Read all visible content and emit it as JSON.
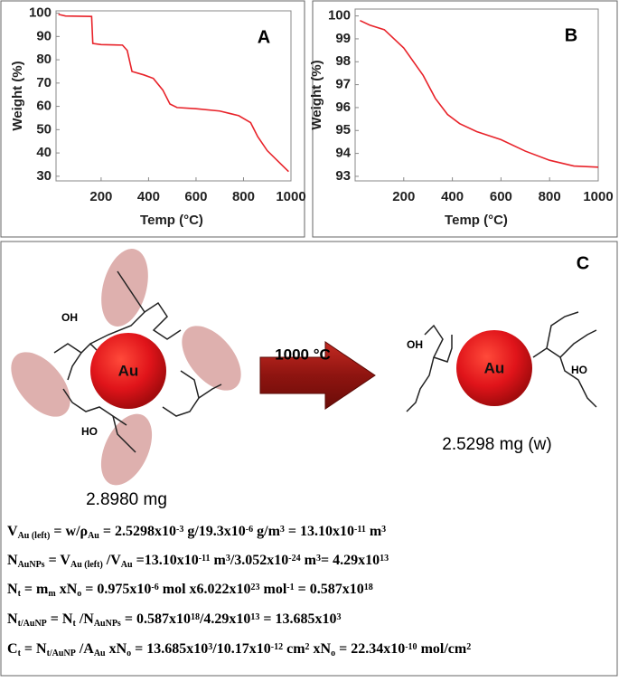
{
  "chart_data": [
    {
      "type": "line",
      "panel_label": "A",
      "xlabel": "Temp (°C)",
      "ylabel": "Weight (%)",
      "xlim": [
        10,
        1000
      ],
      "xticks": [
        200,
        400,
        600,
        800,
        1000
      ],
      "ylim": [
        28,
        101
      ],
      "yticks": [
        30,
        40,
        50,
        60,
        70,
        80,
        90,
        100
      ],
      "series": [
        {
          "color": "#e8232a",
          "x": [
            20,
            50,
            160,
            165,
            200,
            290,
            310,
            330,
            380,
            420,
            460,
            490,
            520,
            600,
            700,
            780,
            830,
            860,
            900,
            950,
            990
          ],
          "values": [
            99.5,
            98.8,
            98.6,
            87,
            86.5,
            86.3,
            84,
            75,
            73.5,
            72,
            67,
            61,
            59.5,
            59,
            58,
            56,
            53,
            47,
            41,
            36,
            32
          ]
        }
      ]
    },
    {
      "type": "line",
      "panel_label": "B",
      "xlabel": "Temp (°C)",
      "ylabel": "Weight (%)",
      "xlim": [
        0,
        1000
      ],
      "xticks": [
        200,
        400,
        600,
        800,
        1000
      ],
      "ylim": [
        92.8,
        100.3
      ],
      "yticks": [
        93,
        94,
        95,
        96,
        97,
        98,
        99,
        100
      ],
      "series": [
        {
          "color": "#e8232a",
          "x": [
            20,
            60,
            120,
            200,
            280,
            330,
            380,
            430,
            500,
            600,
            700,
            800,
            900,
            1000
          ],
          "values": [
            99.8,
            99.6,
            99.4,
            98.6,
            97.4,
            96.4,
            95.7,
            95.3,
            94.95,
            94.6,
            94.1,
            93.7,
            93.45,
            93.4
          ]
        }
      ]
    }
  ],
  "panel_c": {
    "label": "C",
    "left_particle": "Au",
    "right_particle": "Au",
    "arrow_label": "1000 °C",
    "left_mass": "2.8980 mg",
    "right_mass": "2.5298 mg (w)",
    "left_groups": [
      "OH",
      "HO"
    ],
    "right_groups": [
      "OH",
      "HO"
    ],
    "equations": [
      [
        {
          "text": "V"
        },
        {
          "text": "Au (left)",
          "pos": "sub"
        },
        {
          "text": " = w/ρ"
        },
        {
          "text": "Au",
          "pos": "sub"
        },
        {
          "text": " = 2.5298x10"
        },
        {
          "text": "-3",
          "pos": "sup"
        },
        {
          "text": " g/19.3x10"
        },
        {
          "text": "-6",
          "pos": "sup"
        },
        {
          "text": " g/m"
        },
        {
          "text": "3",
          "pos": "sup"
        },
        {
          "text": " = 13.10x10"
        },
        {
          "text": "-11",
          "pos": "sup"
        },
        {
          "text": " m"
        },
        {
          "text": "3",
          "pos": "sup"
        }
      ],
      [
        {
          "text": "N"
        },
        {
          "text": "AuNPs",
          "pos": "sub"
        },
        {
          "text": " = V"
        },
        {
          "text": "Au (left)",
          "pos": "sub"
        },
        {
          "text": " /V"
        },
        {
          "text": "Au",
          "pos": "sub"
        },
        {
          "text": " =13.10x10"
        },
        {
          "text": "-11",
          "pos": "sup"
        },
        {
          "text": " m"
        },
        {
          "text": "3",
          "pos": "sup"
        },
        {
          "text": "/3.052x10"
        },
        {
          "text": "-24",
          "pos": "sup"
        },
        {
          "text": " m"
        },
        {
          "text": "3",
          "pos": "sup"
        },
        {
          "text": "= 4.29x10"
        },
        {
          "text": "13",
          "pos": "sup"
        }
      ],
      [
        {
          "text": "N"
        },
        {
          "text": "t",
          "pos": "sub"
        },
        {
          "text": " = m"
        },
        {
          "text": "m",
          "pos": "sub"
        },
        {
          "text": " xN"
        },
        {
          "text": "o",
          "pos": "sub"
        },
        {
          "text": " = 0.975x10"
        },
        {
          "text": "-6",
          "pos": "sup"
        },
        {
          "text": " mol x6.022x10"
        },
        {
          "text": "23",
          "pos": "sup"
        },
        {
          "text": " mol"
        },
        {
          "text": "-1",
          "pos": "sup"
        },
        {
          "text": " = 0.587x10"
        },
        {
          "text": "18",
          "pos": "sup"
        }
      ],
      [
        {
          "text": "N"
        },
        {
          "text": "t/AuNP",
          "pos": "sub"
        },
        {
          "text": " = N"
        },
        {
          "text": "t",
          "pos": "sub"
        },
        {
          "text": " /N"
        },
        {
          "text": "AuNPs",
          "pos": "sub"
        },
        {
          "text": " = 0.587x10"
        },
        {
          "text": "18",
          "pos": "sup"
        },
        {
          "text": "/4.29x10"
        },
        {
          "text": "13",
          "pos": "sup"
        },
        {
          "text": " = 13.685x10"
        },
        {
          "text": "3",
          "pos": "sup"
        }
      ],
      [
        {
          "text": "C"
        },
        {
          "text": "t",
          "pos": "sub"
        },
        {
          "text": " = N"
        },
        {
          "text": "t/AuNP",
          "pos": "sub"
        },
        {
          "text": " /A"
        },
        {
          "text": "Au",
          "pos": "sub"
        },
        {
          "text": " xN"
        },
        {
          "text": "o",
          "pos": "sub"
        },
        {
          "text": " = 13.685x10"
        },
        {
          "text": "3",
          "pos": "sup"
        },
        {
          "text": "/10.17x10"
        },
        {
          "text": "-12",
          "pos": "sup"
        },
        {
          "text": " cm"
        },
        {
          "text": "2",
          "pos": "sup"
        },
        {
          "text": " xN"
        },
        {
          "text": "o",
          "pos": "sub"
        },
        {
          "text": " = 22.34x10"
        },
        {
          "text": "-10",
          "pos": "sup"
        },
        {
          "text": " mol/cm"
        },
        {
          "text": "2",
          "pos": "sup"
        }
      ]
    ]
  }
}
